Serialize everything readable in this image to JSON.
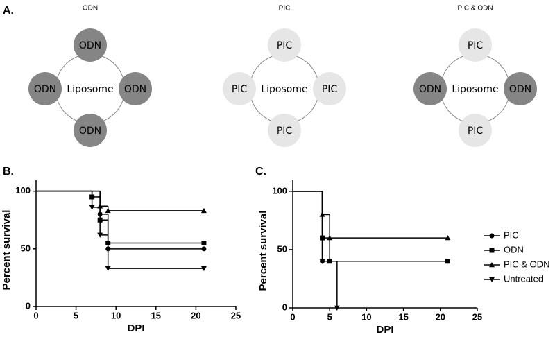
{
  "panel_labels": [
    "A.",
    "B.",
    "C."
  ],
  "diagrams": [
    {
      "title": "ODN",
      "center": "Liposome",
      "satellites": [
        {
          "label": "ODN",
          "color": "#858585"
        },
        {
          "label": "ODN",
          "color": "#858585"
        },
        {
          "label": "ODN",
          "color": "#858585"
        },
        {
          "label": "ODN",
          "color": "#858585"
        }
      ]
    },
    {
      "title": "PIC",
      "center": "Liposome",
      "satellites": [
        {
          "label": "PIC",
          "color": "#e6e6e6"
        },
        {
          "label": "PIC",
          "color": "#e6e6e6"
        },
        {
          "label": "PIC",
          "color": "#e6e6e6"
        },
        {
          "label": "PIC",
          "color": "#e6e6e6"
        }
      ]
    },
    {
      "title": "PIC & ODN",
      "center": "Liposome",
      "satellites": [
        {
          "label": "PIC",
          "color": "#e6e6e6"
        },
        {
          "label": "ODN",
          "color": "#858585"
        },
        {
          "label": "ODN",
          "color": "#858585"
        },
        {
          "label": "PIC",
          "color": "#e6e6e6"
        }
      ]
    }
  ],
  "chart_data": [
    {
      "type": "step",
      "xlabel": "DPI",
      "ylabel": "Percent survival",
      "xlim": [
        0,
        25
      ],
      "xticks": [
        0,
        5,
        10,
        15,
        20,
        25
      ],
      "ylim": [
        0,
        110
      ],
      "yticks": [
        0,
        50,
        100
      ],
      "legend": false,
      "series": [
        {
          "marker": "circle",
          "color": "#000000",
          "x": [
            0,
            8,
            9,
            21
          ],
          "values": [
            100,
            80,
            50,
            50
          ]
        },
        {
          "marker": "square",
          "color": "#000000",
          "x": [
            0,
            7,
            8,
            9,
            21
          ],
          "values": [
            100,
            95,
            75,
            55,
            55
          ]
        },
        {
          "marker": "triangle-up",
          "color": "#000000",
          "x": [
            0,
            8,
            9,
            21
          ],
          "values": [
            100,
            87,
            83,
            83
          ]
        },
        {
          "marker": "triangle-down",
          "color": "#000000",
          "x": [
            0,
            7,
            8,
            9,
            21
          ],
          "values": [
            100,
            86,
            62,
            33,
            33
          ]
        }
      ]
    },
    {
      "type": "step",
      "xlabel": "DPI",
      "ylabel": "Percent survival",
      "xlim": [
        0,
        25
      ],
      "xticks": [
        0,
        5,
        10,
        15,
        20,
        25
      ],
      "ylim": [
        0,
        110
      ],
      "yticks": [
        0,
        50,
        100
      ],
      "legend": "right",
      "series": [
        {
          "name": "PIC",
          "marker": "circle",
          "color": "#000000",
          "x": [
            0,
            4,
            21
          ],
          "values": [
            100,
            40,
            40
          ]
        },
        {
          "name": "ODN",
          "marker": "square",
          "color": "#000000",
          "x": [
            0,
            4,
            5,
            21
          ],
          "values": [
            100,
            60,
            40,
            40
          ]
        },
        {
          "name": "PIC & ODN",
          "marker": "triangle-up",
          "color": "#000000",
          "x": [
            0,
            4,
            5,
            21
          ],
          "values": [
            100,
            80,
            60,
            60
          ]
        },
        {
          "name": "Untreated",
          "marker": "triangle-down",
          "color": "#000000",
          "x": [
            0,
            4,
            6
          ],
          "values": [
            100,
            40,
            0
          ]
        }
      ]
    }
  ]
}
